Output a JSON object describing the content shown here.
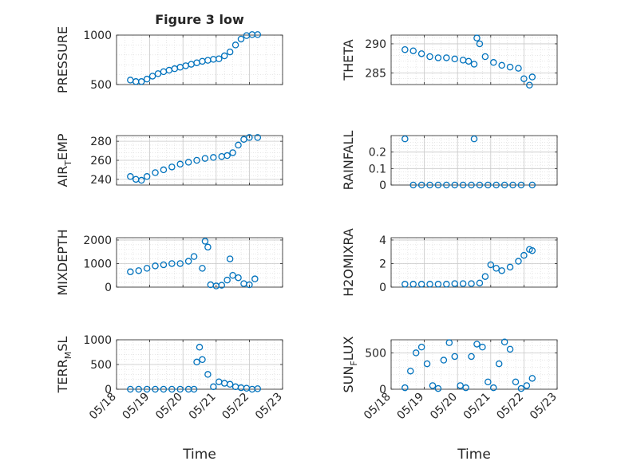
{
  "figure": {
    "title": "Figure 3 low",
    "xlabel": "Time",
    "xtick_labels": [
      "05/18",
      "05/19",
      "05/20",
      "05/21",
      "05/22",
      "05/23"
    ]
  },
  "colors": {
    "marker": "#0072BD",
    "axis": "#262626",
    "grid": "#d9d9d9"
  },
  "chart_data": [
    {
      "type": "scatter",
      "title": "Figure 3 low",
      "ylabel": "PRESSURE",
      "xlim": [
        "05/18",
        "05/23"
      ],
      "ylim": [
        500,
        1000
      ],
      "yticks": [
        500,
        1000
      ],
      "x": [
        "05/18 10:00",
        "05/18 14:00",
        "05/18 18:00",
        "05/18 22:00",
        "05/19 02:00",
        "05/19 06:00",
        "05/19 10:00",
        "05/19 14:00",
        "05/19 18:00",
        "05/19 22:00",
        "05/20 02:00",
        "05/20 06:00",
        "05/20 10:00",
        "05/20 14:00",
        "05/20 18:00",
        "05/20 22:00",
        "05/21 02:00",
        "05/21 06:00",
        "05/21 10:00",
        "05/21 14:00",
        "05/21 18:00",
        "05/21 22:00",
        "05/22 02:00",
        "05/22 06:00"
      ],
      "y": [
        545,
        530,
        530,
        555,
        585,
        610,
        630,
        645,
        660,
        675,
        690,
        705,
        720,
        735,
        745,
        755,
        760,
        790,
        830,
        900,
        960,
        995,
        1005,
        1005
      ],
      "grid": true
    },
    {
      "type": "scatter",
      "ylabel": "THETA",
      "xlim": [
        "05/18",
        "05/23"
      ],
      "ylim": [
        283,
        291.5
      ],
      "yticks": [
        285,
        290
      ],
      "x": [
        "05/18 10:00",
        "05/18 16:00",
        "05/18 22:00",
        "05/19 04:00",
        "05/19 10:00",
        "05/19 16:00",
        "05/19 22:00",
        "05/20 04:00",
        "05/20 08:00",
        "05/20 12:00",
        "05/20 14:00",
        "05/20 16:00",
        "05/20 20:00",
        "05/21 02:00",
        "05/21 08:00",
        "05/21 14:00",
        "05/21 20:00",
        "05/22 00:00",
        "05/22 04:00",
        "05/22 06:00"
      ],
      "y": [
        289,
        288.8,
        288.3,
        287.8,
        287.6,
        287.6,
        287.4,
        287.2,
        287,
        286.5,
        291,
        290,
        287.8,
        286.8,
        286.3,
        286,
        285.8,
        284,
        282.9,
        284.3
      ],
      "grid": true
    },
    {
      "type": "scatter",
      "ylabel": "AIR_TEMP",
      "xlim": [
        "05/18",
        "05/23"
      ],
      "ylim": [
        234,
        286
      ],
      "yticks": [
        240,
        260,
        280
      ],
      "x": [
        "05/18 10:00",
        "05/18 14:00",
        "05/18 18:00",
        "05/18 22:00",
        "05/19 04:00",
        "05/19 10:00",
        "05/19 16:00",
        "05/19 22:00",
        "05/20 04:00",
        "05/20 10:00",
        "05/20 16:00",
        "05/20 22:00",
        "05/21 04:00",
        "05/21 08:00",
        "05/21 12:00",
        "05/21 16:00",
        "05/21 20:00",
        "05/22 00:00",
        "05/22 06:00"
      ],
      "y": [
        243,
        240,
        239,
        243,
        247,
        250,
        253,
        256,
        258,
        260,
        262,
        263,
        264,
        265,
        268,
        276,
        282,
        284,
        284
      ],
      "grid": true
    },
    {
      "type": "scatter",
      "ylabel": "RAINFALL",
      "xlim": [
        "05/18",
        "05/23"
      ],
      "ylim": [
        0,
        0.3
      ],
      "yticks": [
        0,
        0.1,
        0.2
      ],
      "x": [
        "05/18 10:00",
        "05/18 16:00",
        "05/18 22:00",
        "05/19 04:00",
        "05/19 10:00",
        "05/19 16:00",
        "05/19 22:00",
        "05/20 04:00",
        "05/20 10:00",
        "05/20 12:00",
        "05/20 16:00",
        "05/20 22:00",
        "05/21 04:00",
        "05/21 10:00",
        "05/21 16:00",
        "05/21 22:00",
        "05/22 06:00"
      ],
      "y": [
        0.28,
        0,
        0,
        0,
        0,
        0,
        0,
        0,
        0,
        0.28,
        0,
        0,
        0,
        0,
        0,
        0,
        0
      ],
      "grid": true
    },
    {
      "type": "scatter",
      "ylabel": "MIXDEPTH",
      "xlim": [
        "05/18",
        "05/23"
      ],
      "ylim": [
        0,
        2100
      ],
      "yticks": [
        0,
        1000,
        2000
      ],
      "x": [
        "05/18 10:00",
        "05/18 16:00",
        "05/18 22:00",
        "05/19 04:00",
        "05/19 10:00",
        "05/19 16:00",
        "05/19 22:00",
        "05/20 04:00",
        "05/20 08:00",
        "05/20 14:00",
        "05/20 16:00",
        "05/20 18:00",
        "05/20 20:00",
        "05/21 00:00",
        "05/21 04:00",
        "05/21 08:00",
        "05/21 10:00",
        "05/21 12:00",
        "05/21 16:00",
        "05/21 20:00",
        "05/22 00:00",
        "05/22 04:00"
      ],
      "y": [
        650,
        700,
        800,
        900,
        950,
        1000,
        1000,
        1100,
        1300,
        800,
        1950,
        1700,
        100,
        50,
        80,
        300,
        1200,
        500,
        400,
        150,
        100,
        350
      ],
      "grid": true
    },
    {
      "type": "scatter",
      "ylabel": "H2OMIXRA",
      "xlim": [
        "05/18",
        "05/23"
      ],
      "ylim": [
        0,
        4.2
      ],
      "yticks": [
        0,
        2,
        4
      ],
      "x": [
        "05/18 10:00",
        "05/18 16:00",
        "05/18 22:00",
        "05/19 04:00",
        "05/19 10:00",
        "05/19 16:00",
        "05/19 22:00",
        "05/20 04:00",
        "05/20 10:00",
        "05/20 16:00",
        "05/20 20:00",
        "05/21 00:00",
        "05/21 04:00",
        "05/21 08:00",
        "05/21 14:00",
        "05/21 20:00",
        "05/22 00:00",
        "05/22 04:00",
        "05/22 06:00"
      ],
      "y": [
        0.25,
        0.25,
        0.25,
        0.25,
        0.25,
        0.25,
        0.3,
        0.3,
        0.3,
        0.35,
        0.9,
        1.9,
        1.6,
        1.4,
        1.7,
        2.2,
        2.7,
        3.2,
        3.1
      ],
      "grid": true
    },
    {
      "type": "scatter",
      "ylabel": "TERR_MSL",
      "xlim": [
        "05/18",
        "05/23"
      ],
      "ylim": [
        0,
        1000
      ],
      "yticks": [
        0,
        500,
        1000
      ],
      "x": [
        "05/18 10:00",
        "05/18 16:00",
        "05/18 22:00",
        "05/19 04:00",
        "05/19 10:00",
        "05/19 16:00",
        "05/19 22:00",
        "05/20 04:00",
        "05/20 08:00",
        "05/20 10:00",
        "05/20 12:00",
        "05/20 14:00",
        "05/20 18:00",
        "05/20 22:00",
        "05/21 02:00",
        "05/21 06:00",
        "05/21 10:00",
        "05/21 14:00",
        "05/21 18:00",
        "05/21 22:00",
        "05/22 02:00",
        "05/22 06:00"
      ],
      "y": [
        0,
        0,
        0,
        0,
        0,
        0,
        0,
        0,
        0,
        550,
        850,
        600,
        300,
        50,
        150,
        120,
        100,
        50,
        30,
        20,
        0,
        10
      ],
      "grid": true
    },
    {
      "type": "scatter",
      "ylabel": "SUN_FLUX",
      "xlim": [
        "05/18",
        "05/23"
      ],
      "ylim": [
        0,
        680
      ],
      "yticks": [
        0,
        500
      ],
      "x": [
        "05/18 10:00",
        "05/18 14:00",
        "05/18 18:00",
        "05/18 22:00",
        "05/19 02:00",
        "05/19 06:00",
        "05/19 10:00",
        "05/19 14:00",
        "05/19 18:00",
        "05/19 22:00",
        "05/20 02:00",
        "05/20 06:00",
        "05/20 10:00",
        "05/20 14:00",
        "05/20 18:00",
        "05/20 22:00",
        "05/21 02:00",
        "05/21 06:00",
        "05/21 10:00",
        "05/21 14:00",
        "05/21 18:00",
        "05/21 22:00",
        "05/22 02:00",
        "05/22 06:00"
      ],
      "y": [
        20,
        250,
        500,
        580,
        350,
        50,
        10,
        400,
        640,
        450,
        50,
        20,
        450,
        620,
        580,
        100,
        20,
        350,
        650,
        550,
        100,
        10,
        50,
        150
      ],
      "grid": true
    }
  ]
}
